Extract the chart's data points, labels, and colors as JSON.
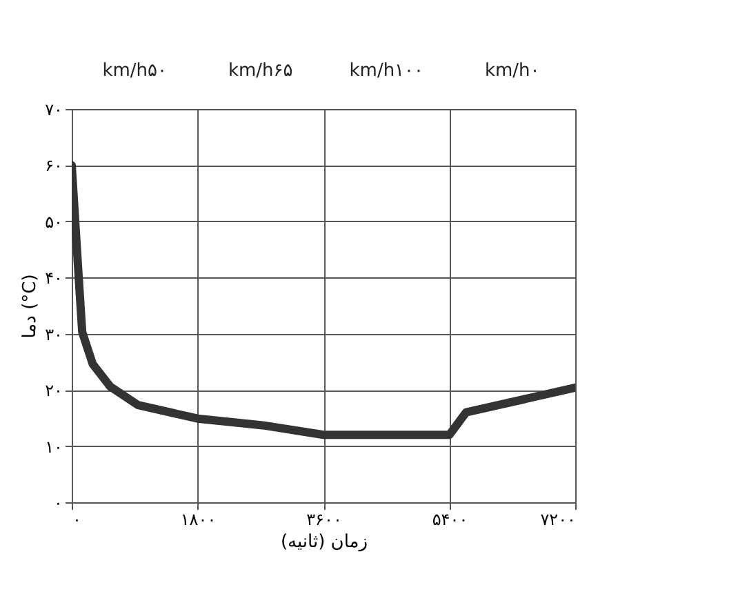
{
  "chart_data": {
    "type": "line",
    "xlabel": "زمان (ثانیه)",
    "ylabel": "دما (°C)",
    "annotations": [
      "km/h۵۰",
      "km/h۶۵",
      "km/h۱۰۰",
      "km/h۰"
    ],
    "x": [
      0,
      100,
      150,
      300,
      550,
      950,
      1800,
      2730,
      3600,
      5400,
      5640,
      7200
    ],
    "series": [
      {
        "color": "#333333",
        "values": [
          60,
          40,
          30.3,
          24.6,
          20.6,
          17.3,
          14.9,
          13.7,
          12,
          12,
          16,
          20.4
        ]
      }
    ],
    "xlim": [
      0,
      7200
    ],
    "ylim": [
      0,
      70
    ],
    "xticks": [
      {
        "value": 0,
        "label": "۰"
      },
      {
        "value": 1800,
        "label": "۱۸۰۰"
      },
      {
        "value": 3600,
        "label": "۳۶۰۰"
      },
      {
        "value": 5400,
        "label": "۵۴۰۰"
      },
      {
        "value": 7200,
        "label": "۷۲۰۰"
      }
    ],
    "yticks": [
      {
        "value": 0,
        "label": "۰"
      },
      {
        "value": 10,
        "label": "۱۰"
      },
      {
        "value": 20,
        "label": "۲۰"
      },
      {
        "value": 30,
        "label": "۳۰"
      },
      {
        "value": 40,
        "label": "۴۰"
      },
      {
        "value": 50,
        "label": "۵۰"
      },
      {
        "value": 60,
        "label": "۶۰"
      },
      {
        "value": 70,
        "label": "۷۰"
      }
    ],
    "grid": true,
    "marker": "none",
    "line_style": "solid",
    "legend": false
  }
}
